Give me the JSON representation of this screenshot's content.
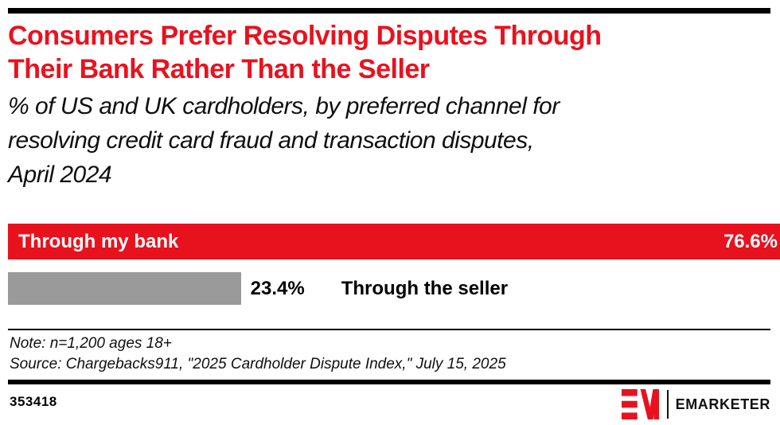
{
  "header": {
    "title_line1": "Consumers Prefer Resolving Disputes Through",
    "title_line2": "Their Bank Rather Than the Seller",
    "subtitle_line1": "% of US and UK cardholders, by preferred channel for",
    "subtitle_line2": "resolving credit card fraud and transaction disputes,",
    "subtitle_line3": "April 2024"
  },
  "chart_data": {
    "type": "bar",
    "orientation": "horizontal",
    "title": "Consumers Prefer Resolving Disputes Through Their Bank Rather Than the Seller",
    "subtitle": "% of US and UK cardholders, by preferred channel for resolving credit card fraud and transaction disputes, April 2024",
    "categories": [
      "Through my bank",
      "Through the seller"
    ],
    "values": [
      76.6,
      23.4
    ],
    "value_labels": [
      "76.6%",
      "23.4%"
    ],
    "bar_colors": [
      "#E8121E",
      "#9A9A9A"
    ],
    "unit": "%",
    "xlim": [
      0,
      76.6
    ],
    "grid": false,
    "legend": false
  },
  "footer": {
    "note": "Note: n=1,200 ages 18+",
    "source": "Source: Chargebacks911, \"2025 Cardholder Dispute Index,\" July 15, 2025",
    "chart_id": "353418",
    "brand": "EMARKETER"
  },
  "colors": {
    "accent_red": "#E8121E",
    "bar_gray": "#9A9A9A",
    "rule_black": "#000000"
  }
}
